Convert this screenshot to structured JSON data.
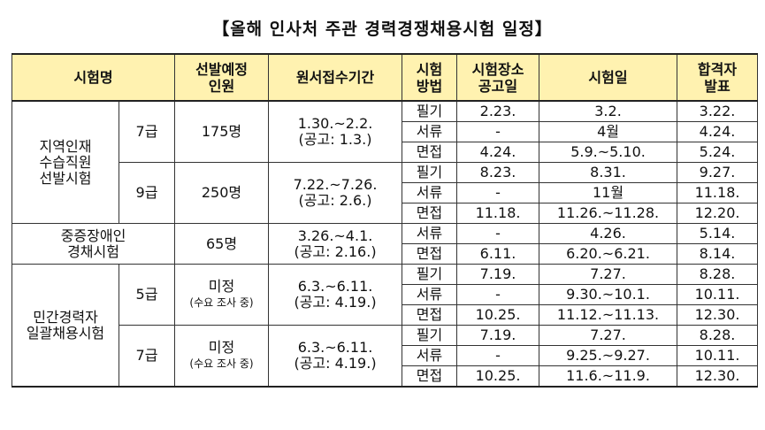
{
  "title": "【올해 인사처 주관 경력경쟁채용시험 일정】",
  "headers": {
    "exam_name": "시험명",
    "quota_l1": "선발예정",
    "quota_l2": "인원",
    "application": "원서접수기간",
    "method_l1": "시험",
    "method_l2": "방법",
    "venue_l1": "시험장소",
    "venue_l2": "공고일",
    "exam_date": "시험일",
    "result_l1": "합격자",
    "result_l2": "발표"
  },
  "groups": [
    {
      "name_lines": [
        "지역인재",
        "수습직원",
        "선발시험"
      ],
      "subgroups": [
        {
          "grade": "7급",
          "quota": "175명",
          "quota_note": "",
          "app_period": "1.30.~2.2.",
          "app_notice": "(공고: 1.3.)",
          "rows": [
            {
              "method": "필기",
              "venue": "2.23.",
              "date": "3.2.",
              "result": "3.22."
            },
            {
              "method": "서류",
              "venue": "-",
              "date": "4월",
              "result": "4.24."
            },
            {
              "method": "면접",
              "venue": "4.24.",
              "date": "5.9.~5.10.",
              "result": "5.24."
            }
          ]
        },
        {
          "grade": "9급",
          "quota": "250명",
          "quota_note": "",
          "app_period": "7.22.~7.26.",
          "app_notice": "(공고: 2.6.)",
          "rows": [
            {
              "method": "필기",
              "venue": "8.23.",
              "date": "8.31.",
              "result": "9.27."
            },
            {
              "method": "서류",
              "venue": "-",
              "date": "11월",
              "result": "11.18."
            },
            {
              "method": "면접",
              "venue": "11.18.",
              "date": "11.26.~11.28.",
              "result": "12.20."
            }
          ]
        }
      ]
    },
    {
      "name_lines": [
        "중증장애인",
        "경채시험"
      ],
      "subgroups": [
        {
          "grade": "",
          "quota": "65명",
          "quota_note": "",
          "app_period": "3.26.~4.1.",
          "app_notice": "(공고: 2.16.)",
          "rows": [
            {
              "method": "서류",
              "venue": "-",
              "date": "4.26.",
              "result": "5.14."
            },
            {
              "method": "면접",
              "venue": "6.11.",
              "date": "6.20.~6.21.",
              "result": "8.14."
            }
          ]
        }
      ]
    },
    {
      "name_lines": [
        "민간경력자",
        "일괄채용시험"
      ],
      "subgroups": [
        {
          "grade": "5급",
          "quota": "미정",
          "quota_note": "(수요 조사 중)",
          "app_period": "6.3.~6.11.",
          "app_notice": "(공고: 4.19.)",
          "rows": [
            {
              "method": "필기",
              "venue": "7.19.",
              "date": "7.27.",
              "result": "8.28."
            },
            {
              "method": "서류",
              "venue": "-",
              "date": "9.30.~10.1.",
              "result": "10.11."
            },
            {
              "method": "면접",
              "venue": "10.25.",
              "date": "11.12.~11.13.",
              "result": "12.30."
            }
          ]
        },
        {
          "grade": "7급",
          "quota": "미정",
          "quota_note": "(수요 조사 중)",
          "app_period": "6.3.~6.11.",
          "app_notice": "(공고: 4.19.)",
          "rows": [
            {
              "method": "필기",
              "venue": "7.19.",
              "date": "7.27.",
              "result": "8.28."
            },
            {
              "method": "서류",
              "venue": "-",
              "date": "9.25.~9.27.",
              "result": "10.11."
            },
            {
              "method": "면접",
              "venue": "10.25.",
              "date": "11.6.~11.9.",
              "result": "12.30."
            }
          ]
        }
      ]
    }
  ]
}
